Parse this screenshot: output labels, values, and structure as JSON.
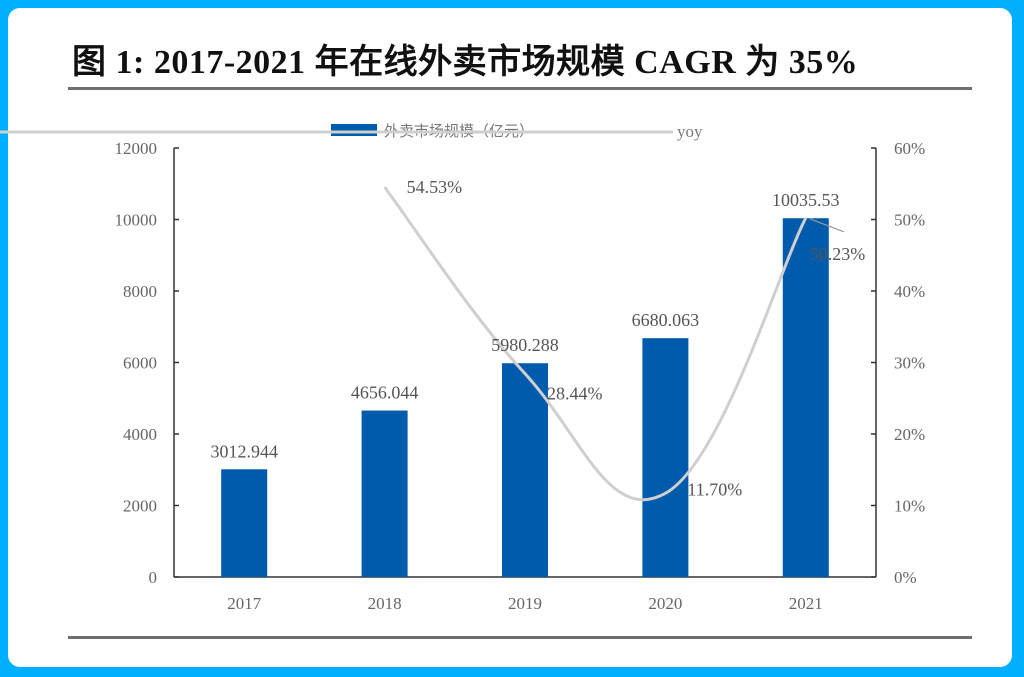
{
  "title": "图 1: 2017-2021 年在线外卖市场规模 CAGR 为 35%",
  "colors": {
    "frame": "#00b0ff",
    "bar": "#005bac",
    "line": "#cfcfcf",
    "axis": "#333333",
    "text": "#666666"
  },
  "legend": {
    "bar_label": "外卖市场规模（亿元）",
    "line_label": "yoy"
  },
  "chart_data": {
    "type": "bar",
    "title": "图 1: 2017-2021 年在线外卖市场规模 CAGR 为 35%",
    "categories": [
      "2017",
      "2018",
      "2019",
      "2020",
      "2021"
    ],
    "series": [
      {
        "name": "外卖市场规模（亿元）",
        "type": "bar",
        "axis": "left",
        "values": [
          3012.944,
          4656.044,
          5980.288,
          6680.063,
          10035.53
        ],
        "labels": [
          "3012.944",
          "4656.044",
          "5980.288",
          "6680.063",
          "10035.53"
        ]
      },
      {
        "name": "yoy",
        "type": "line",
        "axis": "right",
        "values": [
          null,
          54.53,
          28.44,
          11.7,
          50.23
        ],
        "labels": [
          "",
          "54.53%",
          "28.44%",
          "11.70%",
          "50.23%"
        ]
      }
    ],
    "xlabel": "",
    "ylabel": "",
    "ylim": [
      0,
      12000
    ],
    "yticks": [
      "0",
      "2000",
      "4000",
      "6000",
      "8000",
      "10000",
      "12000"
    ],
    "y2lim": [
      0,
      60
    ],
    "y2ticks": [
      "0%",
      "10%",
      "20%",
      "30%",
      "40%",
      "50%",
      "60%"
    ],
    "grid": false,
    "legend_position": "top"
  }
}
